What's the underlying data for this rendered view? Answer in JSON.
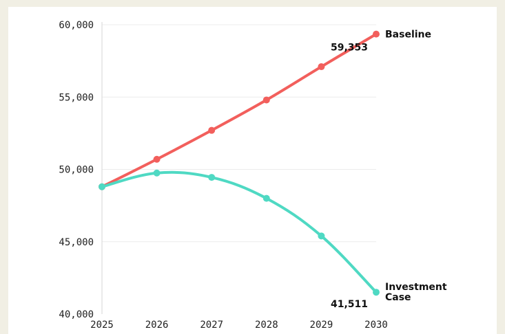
{
  "chart_data": {
    "type": "line",
    "x": [
      2025,
      2026,
      2027,
      2028,
      2029,
      2030
    ],
    "x_tick_labels": [
      "2025",
      "2026",
      "2027",
      "2028",
      "2029",
      "2030"
    ],
    "ylim": [
      40000,
      60000
    ],
    "y_ticks": [
      40000,
      45000,
      50000,
      55000,
      60000
    ],
    "y_tick_labels": [
      "40,000",
      "45,000",
      "50,000",
      "55,000",
      "60,000"
    ],
    "grid": "horizontal",
    "series": [
      {
        "name": "Baseline",
        "color": "#f25f5c",
        "values": [
          48800,
          50700,
          52700,
          54800,
          57100,
          59353
        ],
        "end_label": "59,353",
        "label_lines": [
          "Baseline"
        ]
      },
      {
        "name": "Investment Case",
        "color": "#4fd9c3",
        "values": [
          48800,
          49750,
          49450,
          48000,
          45400,
          41511
        ],
        "end_label": "41,511",
        "label_lines": [
          "Investment",
          "Case"
        ]
      }
    ]
  }
}
